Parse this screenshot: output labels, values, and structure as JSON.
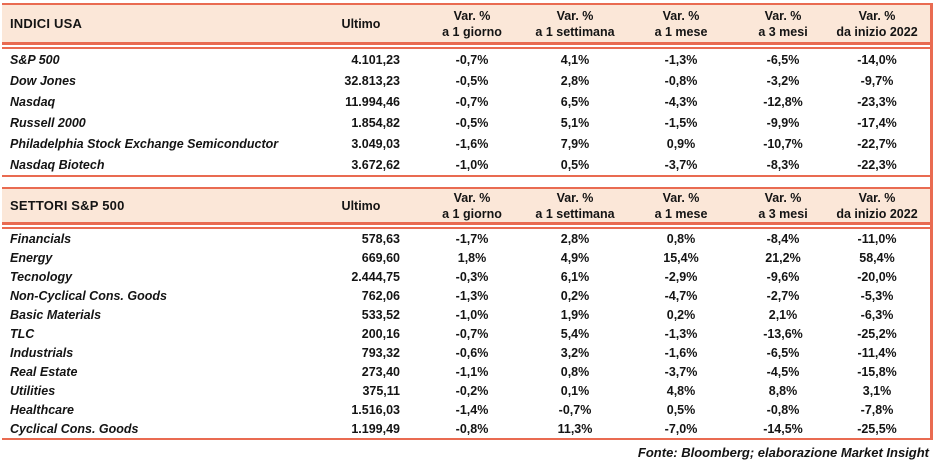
{
  "chart_data": [
    {
      "type": "table",
      "title": "INDICI USA",
      "columns": {
        "ultimo": "Ultimo",
        "vars": [
          {
            "l1": "Var. %",
            "l2": "a 1 giorno"
          },
          {
            "l1": "Var. %",
            "l2": "a 1 settimana"
          },
          {
            "l1": "Var. %",
            "l2": "a 1 mese"
          },
          {
            "l1": "Var. %",
            "l2": "a 3 mesi"
          },
          {
            "l1": "Var. %",
            "l2": "da inizio 2022"
          }
        ]
      },
      "rows": [
        {
          "name": "S&P 500",
          "ultimo": "4.101,23",
          "vars": [
            "-0,7%",
            "4,1%",
            "-1,3%",
            "-6,5%",
            "-14,0%"
          ]
        },
        {
          "name": "Dow Jones",
          "ultimo": "32.813,23",
          "vars": [
            "-0,5%",
            "2,8%",
            "-0,8%",
            "-3,2%",
            "-9,7%"
          ]
        },
        {
          "name": "Nasdaq",
          "ultimo": "11.994,46",
          "vars": [
            "-0,7%",
            "6,5%",
            "-4,3%",
            "-12,8%",
            "-23,3%"
          ]
        },
        {
          "name": "Russell 2000",
          "ultimo": "1.854,82",
          "vars": [
            "-0,5%",
            "5,1%",
            "-1,5%",
            "-9,9%",
            "-17,4%"
          ]
        },
        {
          "name": "Philadelphia Stock Exchange Semiconductor",
          "ultimo": "3.049,03",
          "vars": [
            "-1,6%",
            "7,9%",
            "0,9%",
            "-10,7%",
            "-22,7%"
          ]
        },
        {
          "name": "Nasdaq Biotech",
          "ultimo": "3.672,62",
          "vars": [
            "-1,0%",
            "0,5%",
            "-3,7%",
            "-8,3%",
            "-22,3%"
          ]
        }
      ]
    },
    {
      "type": "table",
      "title": "SETTORI S&P 500",
      "columns": {
        "ultimo": "Ultimo",
        "vars": [
          {
            "l1": "Var. %",
            "l2": "a 1 giorno"
          },
          {
            "l1": "Var. %",
            "l2": "a 1 settimana"
          },
          {
            "l1": "Var. %",
            "l2": "a 1 mese"
          },
          {
            "l1": "Var. %",
            "l2": "a 3 mesi"
          },
          {
            "l1": "Var. %",
            "l2": "da inizio 2022"
          }
        ]
      },
      "rows": [
        {
          "name": "Financials",
          "ultimo": "578,63",
          "vars": [
            "-1,7%",
            "2,8%",
            "0,8%",
            "-8,4%",
            "-11,0%"
          ]
        },
        {
          "name": "Energy",
          "ultimo": "669,60",
          "vars": [
            "1,8%",
            "4,9%",
            "15,4%",
            "21,2%",
            "58,4%"
          ]
        },
        {
          "name": "Tecnology",
          "ultimo": "2.444,75",
          "vars": [
            "-0,3%",
            "6,1%",
            "-2,9%",
            "-9,6%",
            "-20,0%"
          ]
        },
        {
          "name": "Non-Cyclical Cons. Goods",
          "ultimo": "762,06",
          "vars": [
            "-1,3%",
            "0,2%",
            "-4,7%",
            "-2,7%",
            "-5,3%"
          ]
        },
        {
          "name": "Basic Materials",
          "ultimo": "533,52",
          "vars": [
            "-1,0%",
            "1,9%",
            "0,2%",
            "2,1%",
            "-6,3%"
          ]
        },
        {
          "name": "TLC",
          "ultimo": "200,16",
          "vars": [
            "-0,7%",
            "5,4%",
            "-1,3%",
            "-13,6%",
            "-25,2%"
          ]
        },
        {
          "name": "Industrials",
          "ultimo": "793,32",
          "vars": [
            "-0,6%",
            "3,2%",
            "-1,6%",
            "-6,5%",
            "-11,4%"
          ]
        },
        {
          "name": "Real Estate",
          "ultimo": "273,40",
          "vars": [
            "-1,1%",
            "0,8%",
            "-3,7%",
            "-4,5%",
            "-15,8%"
          ]
        },
        {
          "name": "Utilities",
          "ultimo": "375,11",
          "vars": [
            "-0,2%",
            "0,1%",
            "4,8%",
            "8,8%",
            "3,1%"
          ]
        },
        {
          "name": "Healthcare",
          "ultimo": "1.516,03",
          "vars": [
            "-1,4%",
            "-0,7%",
            "0,5%",
            "-0,8%",
            "-7,8%"
          ]
        },
        {
          "name": "Cyclical Cons. Goods",
          "ultimo": "1.199,49",
          "vars": [
            "-0,8%",
            "11,3%",
            "-7,0%",
            "-14,5%",
            "-25,5%"
          ]
        }
      ]
    }
  ],
  "footer": {
    "source_note": "Fonte: Bloomberg; elaborazione Market Insight"
  },
  "colors": {
    "accent": "#E96B51",
    "header_bg": "#FBE7D8",
    "text": "#141414"
  }
}
